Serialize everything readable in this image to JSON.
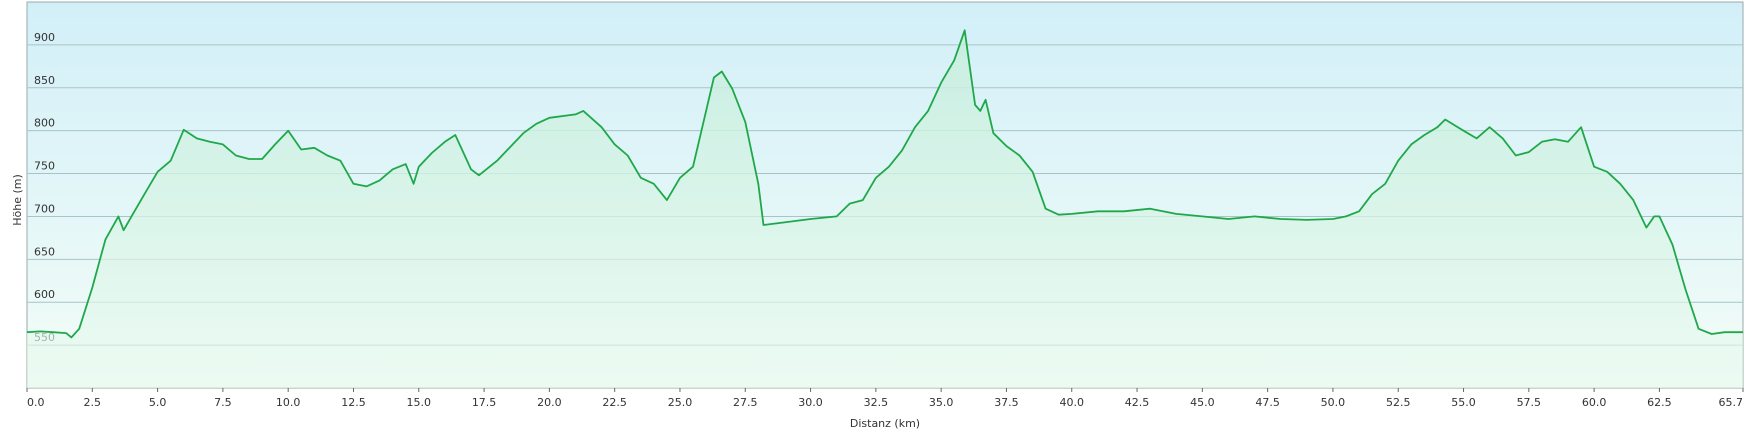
{
  "chart_data": {
    "type": "area",
    "xlabel": "Distanz  (km)",
    "ylabel": "Höhe (m)",
    "x": [
      0,
      0.5,
      1,
      1.5,
      1.7,
      2,
      2.5,
      3,
      3.5,
      3.7,
      4,
      4.5,
      5,
      5.5,
      6,
      6.5,
      7,
      7.5,
      8,
      8.5,
      9,
      9.5,
      10,
      10.5,
      11,
      11.5,
      12,
      12.5,
      13,
      13.5,
      14,
      14.5,
      14.8,
      15,
      15.5,
      16,
      16.4,
      17,
      17.3,
      18,
      19,
      19.5,
      20,
      21,
      21.3,
      22,
      22.5,
      23,
      23.5,
      24,
      24.5,
      25,
      25.5,
      26,
      26.3,
      26.6,
      27,
      27.5,
      28,
      28.2,
      29,
      30,
      31,
      31.5,
      32,
      32.5,
      33,
      33.5,
      34,
      34.5,
      35,
      35.5,
      35.9,
      36,
      36.3,
      36.5,
      36.7,
      37,
      37.5,
      38,
      38.5,
      39,
      39.5,
      40,
      41,
      42,
      43,
      44,
      45,
      46,
      47,
      48,
      49,
      50,
      50.5,
      51,
      51.5,
      52,
      52.5,
      53,
      53.5,
      54,
      54.3,
      55,
      55.5,
      56,
      56.5,
      57,
      57.5,
      58,
      58.5,
      59,
      59.5,
      60,
      60.5,
      61,
      61.5,
      62,
      62.3,
      62.5,
      63,
      63.5,
      64,
      64.5,
      65,
      65.7
    ],
    "values": [
      565,
      566,
      565,
      564,
      559,
      569,
      617,
      673,
      700,
      684,
      700,
      726,
      752,
      765,
      801,
      791,
      787,
      784,
      771,
      767,
      767,
      784,
      800,
      778,
      780,
      771,
      765,
      738,
      735,
      742,
      755,
      761,
      738,
      758,
      774,
      787,
      795,
      755,
      748,
      765,
      797,
      808,
      815,
      819,
      823,
      804,
      784,
      771,
      745,
      738,
      719,
      745,
      758,
      823,
      862,
      869,
      849,
      810,
      738,
      690,
      693,
      697,
      700,
      715,
      719,
      745,
      758,
      777,
      804,
      823,
      856,
      882,
      917,
      895,
      830,
      823,
      836,
      797,
      782,
      771,
      752,
      709,
      702,
      703,
      706,
      706,
      709,
      703,
      700,
      697,
      700,
      697,
      696,
      697,
      700,
      706,
      726,
      738,
      765,
      784,
      795,
      804,
      813,
      800,
      791,
      804,
      791,
      771,
      775,
      787,
      790,
      787,
      804,
      758,
      752,
      738,
      719,
      687,
      700,
      700,
      667,
      615,
      569,
      563,
      565,
      565
    ],
    "color": "#1fa84a",
    "xlim": [
      0,
      65.7
    ],
    "xticks": [
      {
        "value": 0,
        "label": "0.0"
      },
      2.5,
      {
        "value": 5,
        "label": "5.0"
      },
      7.5,
      {
        "value": 10,
        "label": "10.0"
      },
      12.5,
      {
        "value": 15,
        "label": "15.0"
      },
      17.5,
      {
        "value": 20,
        "label": "20.0"
      },
      22.5,
      {
        "value": 25,
        "label": "25.0"
      },
      27.5,
      {
        "value": 30,
        "label": "30.0"
      },
      32.5,
      {
        "value": 35,
        "label": "35.0"
      },
      37.5,
      {
        "value": 40,
        "label": "40.0"
      },
      42.5,
      {
        "value": 45,
        "label": "45.0"
      },
      47.5,
      {
        "value": 50,
        "label": "50.0"
      },
      52.5,
      {
        "value": 55,
        "label": "55.0"
      },
      57.5,
      {
        "value": 60,
        "label": "60.0"
      },
      62.5,
      65.7
    ],
    "ylim": [
      500,
      950
    ],
    "yticks": [
      550,
      600,
      650,
      700,
      750,
      800,
      850,
      900
    ],
    "grid": true
  }
}
